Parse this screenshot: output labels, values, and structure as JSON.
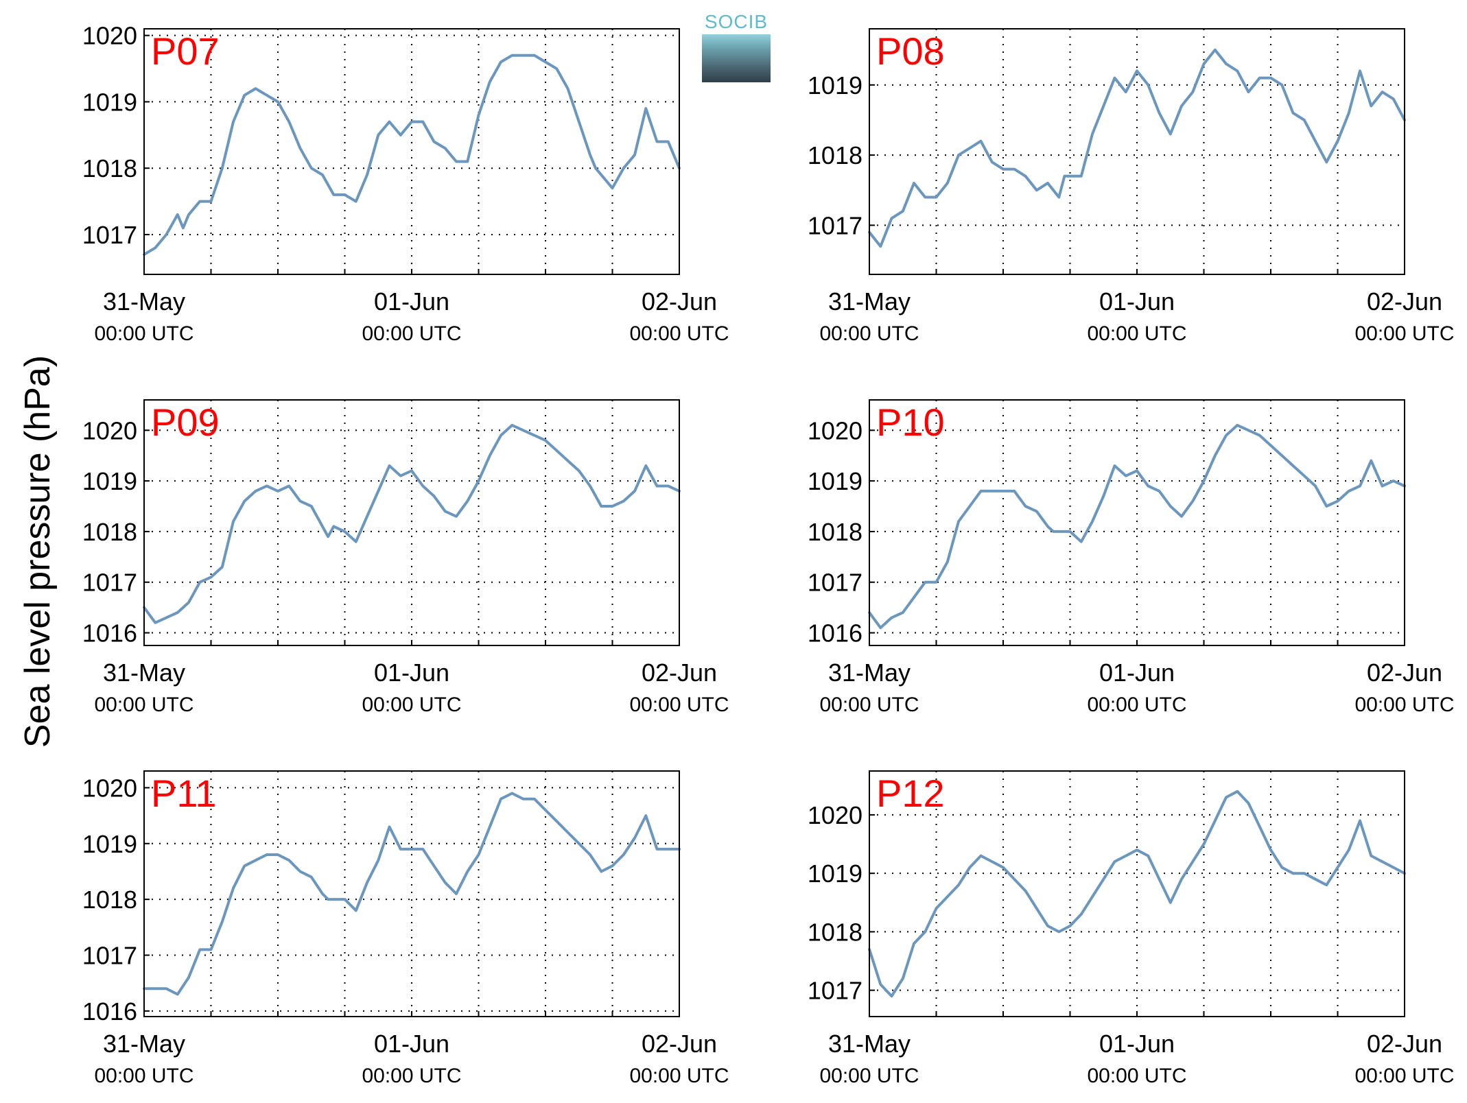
{
  "ylabel": "Sea level pressure (hPa)",
  "logo_text": "SOCIB",
  "colors": {
    "line": "#6b96bd",
    "panel_title": "#ff0000",
    "axes": "#000000",
    "grid": "#000000"
  },
  "chart_data": [
    {
      "type": "line",
      "title": "P07",
      "x_ticks": [
        {
          "date": "31-May",
          "time": "00:00 UTC"
        },
        {
          "date": "01-Jun",
          "time": "00:00 UTC"
        },
        {
          "date": "02-Jun",
          "time": "00:00 UTC"
        }
      ],
      "x_range_hours": [
        0,
        48
      ],
      "ylim": [
        1016.4,
        1020.1
      ],
      "y_ticks": [
        1017,
        1018,
        1019,
        1020
      ],
      "grid": true,
      "series": [
        {
          "x_hours": [
            0,
            1,
            2,
            3,
            3.5,
            4,
            5,
            6,
            7,
            8,
            9,
            10,
            11,
            12,
            13,
            14,
            15,
            16,
            17,
            18,
            19,
            20,
            21,
            22,
            23,
            24,
            25,
            26,
            27,
            28,
            29,
            30,
            31,
            32,
            33,
            34,
            35,
            36,
            37,
            38,
            39,
            40,
            40.5,
            41,
            42,
            43,
            44,
            45,
            46,
            47,
            48
          ],
          "values": [
            1016.7,
            1016.8,
            1017.0,
            1017.3,
            1017.1,
            1017.3,
            1017.5,
            1017.5,
            1018.0,
            1018.7,
            1019.1,
            1019.2,
            1019.1,
            1019.0,
            1018.7,
            1018.3,
            1018.0,
            1017.9,
            1017.6,
            1017.6,
            1017.5,
            1017.9,
            1018.5,
            1018.7,
            1018.5,
            1018.7,
            1018.7,
            1018.4,
            1018.3,
            1018.1,
            1018.1,
            1018.8,
            1019.3,
            1019.6,
            1019.7,
            1019.7,
            1019.7,
            1019.6,
            1019.5,
            1019.2,
            1018.7,
            1018.2,
            1018.0,
            1017.9,
            1017.7,
            1018.0,
            1018.2,
            1018.9,
            1018.4,
            1018.4,
            1018.0
          ]
        }
      ]
    },
    {
      "type": "line",
      "title": "P08",
      "x_ticks": [
        {
          "date": "31-May",
          "time": "00:00 UTC"
        },
        {
          "date": "01-Jun",
          "time": "00:00 UTC"
        },
        {
          "date": "02-Jun",
          "time": "00:00 UTC"
        }
      ],
      "x_range_hours": [
        0,
        48
      ],
      "ylim": [
        1016.3,
        1019.8
      ],
      "y_ticks": [
        1017,
        1018,
        1019
      ],
      "grid": true,
      "series": [
        {
          "x_hours": [
            0,
            1,
            2,
            3,
            4,
            5,
            6,
            7,
            8,
            9,
            10,
            11,
            12,
            13,
            14,
            15,
            16,
            17,
            17.5,
            18,
            19,
            20,
            21,
            22,
            23,
            24,
            25,
            26,
            27,
            28,
            29,
            30,
            31,
            32,
            33,
            34,
            35,
            36,
            37,
            38,
            39,
            40,
            41,
            42,
            43,
            44,
            45,
            46,
            47,
            48
          ],
          "values": [
            1016.9,
            1016.7,
            1017.1,
            1017.2,
            1017.6,
            1017.4,
            1017.4,
            1017.6,
            1018.0,
            1018.1,
            1018.2,
            1017.9,
            1017.8,
            1017.8,
            1017.7,
            1017.5,
            1017.6,
            1017.4,
            1017.7,
            1017.7,
            1017.7,
            1018.3,
            1018.7,
            1019.1,
            1018.9,
            1019.2,
            1019.0,
            1018.6,
            1018.3,
            1018.7,
            1018.9,
            1019.3,
            1019.5,
            1019.3,
            1019.2,
            1018.9,
            1019.1,
            1019.1,
            1019.0,
            1018.6,
            1018.5,
            1018.2,
            1017.9,
            1018.2,
            1018.6,
            1019.2,
            1018.7,
            1018.9,
            1018.8,
            1018.5
          ]
        }
      ]
    },
    {
      "type": "line",
      "title": "P09",
      "x_ticks": [
        {
          "date": "31-May",
          "time": "00:00 UTC"
        },
        {
          "date": "01-Jun",
          "time": "00:00 UTC"
        },
        {
          "date": "02-Jun",
          "time": "00:00 UTC"
        }
      ],
      "x_range_hours": [
        0,
        48
      ],
      "ylim": [
        1015.75,
        1020.6
      ],
      "y_ticks": [
        1016,
        1017,
        1018,
        1019,
        1020
      ],
      "grid": true,
      "series": [
        {
          "x_hours": [
            0,
            1,
            2,
            3,
            4,
            5,
            6,
            7,
            8,
            9,
            10,
            11,
            12,
            13,
            14,
            15,
            16,
            16.5,
            17,
            18,
            19,
            20,
            21,
            22,
            23,
            24,
            25,
            26,
            27,
            28,
            29,
            30,
            31,
            32,
            33,
            34,
            35,
            36,
            37,
            38,
            39,
            40,
            41,
            42,
            43,
            44,
            45,
            46,
            47,
            48
          ],
          "values": [
            1016.5,
            1016.2,
            1016.3,
            1016.4,
            1016.6,
            1017.0,
            1017.1,
            1017.3,
            1018.2,
            1018.6,
            1018.8,
            1018.9,
            1018.8,
            1018.9,
            1018.6,
            1018.5,
            1018.1,
            1017.9,
            1018.1,
            1018.0,
            1017.8,
            1018.3,
            1018.8,
            1019.3,
            1019.1,
            1019.2,
            1018.9,
            1018.7,
            1018.4,
            1018.3,
            1018.6,
            1019.0,
            1019.5,
            1019.9,
            1020.1,
            1020.0,
            1019.9,
            1019.8,
            1019.6,
            1019.4,
            1019.2,
            1018.9,
            1018.5,
            1018.5,
            1018.6,
            1018.8,
            1019.3,
            1018.9,
            1018.9,
            1018.8
          ]
        }
      ]
    },
    {
      "type": "line",
      "title": "P10",
      "x_ticks": [
        {
          "date": "31-May",
          "time": "00:00 UTC"
        },
        {
          "date": "01-Jun",
          "time": "00:00 UTC"
        },
        {
          "date": "02-Jun",
          "time": "00:00 UTC"
        }
      ],
      "x_range_hours": [
        0,
        48
      ],
      "ylim": [
        1015.75,
        1020.6
      ],
      "y_ticks": [
        1016,
        1017,
        1018,
        1019,
        1020
      ],
      "grid": true,
      "series": [
        {
          "x_hours": [
            0,
            1,
            2,
            3,
            4,
            5,
            6,
            7,
            8,
            9,
            10,
            11,
            12,
            13,
            14,
            15,
            16,
            16.5,
            17,
            18,
            19,
            20,
            21,
            22,
            23,
            24,
            25,
            26,
            27,
            28,
            29,
            30,
            31,
            32,
            33,
            34,
            35,
            36,
            37,
            38,
            39,
            40,
            41,
            42,
            43,
            44,
            45,
            46,
            47,
            48
          ],
          "values": [
            1016.4,
            1016.1,
            1016.3,
            1016.4,
            1016.7,
            1017.0,
            1017.0,
            1017.4,
            1018.2,
            1018.5,
            1018.8,
            1018.8,
            1018.8,
            1018.8,
            1018.5,
            1018.4,
            1018.1,
            1018.0,
            1018.0,
            1018.0,
            1017.8,
            1018.2,
            1018.7,
            1019.3,
            1019.1,
            1019.2,
            1018.9,
            1018.8,
            1018.5,
            1018.3,
            1018.6,
            1019.0,
            1019.5,
            1019.9,
            1020.1,
            1020.0,
            1019.9,
            1019.7,
            1019.5,
            1019.3,
            1019.1,
            1018.9,
            1018.5,
            1018.6,
            1018.8,
            1018.9,
            1019.4,
            1018.9,
            1019.0,
            1018.9
          ]
        }
      ]
    },
    {
      "type": "line",
      "title": "P11",
      "x_ticks": [
        {
          "date": "31-May",
          "time": "00:00 UTC"
        },
        {
          "date": "01-Jun",
          "time": "00:00 UTC"
        },
        {
          "date": "02-Jun",
          "time": "00:00 UTC"
        }
      ],
      "x_range_hours": [
        0,
        48
      ],
      "ylim": [
        1015.9,
        1020.3
      ],
      "y_ticks": [
        1016,
        1017,
        1018,
        1019,
        1020
      ],
      "grid": true,
      "series": [
        {
          "x_hours": [
            0,
            1,
            2,
            3,
            4,
            5,
            6,
            7,
            8,
            9,
            10,
            11,
            12,
            13,
            14,
            15,
            16,
            16.5,
            17,
            18,
            19,
            20,
            21,
            22,
            23,
            24,
            25,
            26,
            27,
            28,
            29,
            30,
            31,
            32,
            33,
            34,
            35,
            36,
            37,
            38,
            39,
            40,
            41,
            42,
            43,
            44,
            45,
            46,
            47,
            48
          ],
          "values": [
            1016.4,
            1016.4,
            1016.4,
            1016.3,
            1016.6,
            1017.1,
            1017.1,
            1017.6,
            1018.2,
            1018.6,
            1018.7,
            1018.8,
            1018.8,
            1018.7,
            1018.5,
            1018.4,
            1018.1,
            1018.0,
            1018.0,
            1018.0,
            1017.8,
            1018.3,
            1018.7,
            1019.3,
            1018.9,
            1018.9,
            1018.9,
            1018.6,
            1018.3,
            1018.1,
            1018.5,
            1018.8,
            1019.3,
            1019.8,
            1019.9,
            1019.8,
            1019.8,
            1019.6,
            1019.4,
            1019.2,
            1019.0,
            1018.8,
            1018.5,
            1018.6,
            1018.8,
            1019.1,
            1019.5,
            1018.9,
            1018.9,
            1018.9
          ]
        }
      ]
    },
    {
      "type": "line",
      "title": "P12",
      "x_ticks": [
        {
          "date": "31-May",
          "time": "00:00 UTC"
        },
        {
          "date": "01-Jun",
          "time": "00:00 UTC"
        },
        {
          "date": "02-Jun",
          "time": "00:00 UTC"
        }
      ],
      "x_range_hours": [
        0,
        48
      ],
      "ylim": [
        1016.55,
        1020.75
      ],
      "y_ticks": [
        1017,
        1018,
        1019,
        1020
      ],
      "grid": true,
      "series": [
        {
          "x_hours": [
            0,
            1,
            2,
            3,
            4,
            5,
            6,
            7,
            8,
            9,
            10,
            11,
            12,
            13,
            14,
            15,
            16,
            17,
            18,
            19,
            20,
            21,
            22,
            23,
            24,
            25,
            26,
            27,
            28,
            29,
            30,
            31,
            32,
            33,
            34,
            35,
            36,
            37,
            38,
            39,
            40,
            41,
            42,
            43,
            44,
            45,
            46,
            47,
            48
          ],
          "values": [
            1017.7,
            1017.1,
            1016.9,
            1017.2,
            1017.8,
            1018.0,
            1018.4,
            1018.6,
            1018.8,
            1019.1,
            1019.3,
            1019.2,
            1019.1,
            1018.9,
            1018.7,
            1018.4,
            1018.1,
            1018.0,
            1018.1,
            1018.3,
            1018.6,
            1018.9,
            1019.2,
            1019.3,
            1019.4,
            1019.3,
            1018.9,
            1018.5,
            1018.9,
            1019.2,
            1019.5,
            1019.9,
            1020.3,
            1020.4,
            1020.2,
            1019.8,
            1019.4,
            1019.1,
            1019.0,
            1019.0,
            1018.9,
            1018.8,
            1019.1,
            1019.4,
            1019.9,
            1019.3,
            1019.2,
            1019.1,
            1019.0
          ]
        }
      ]
    }
  ]
}
